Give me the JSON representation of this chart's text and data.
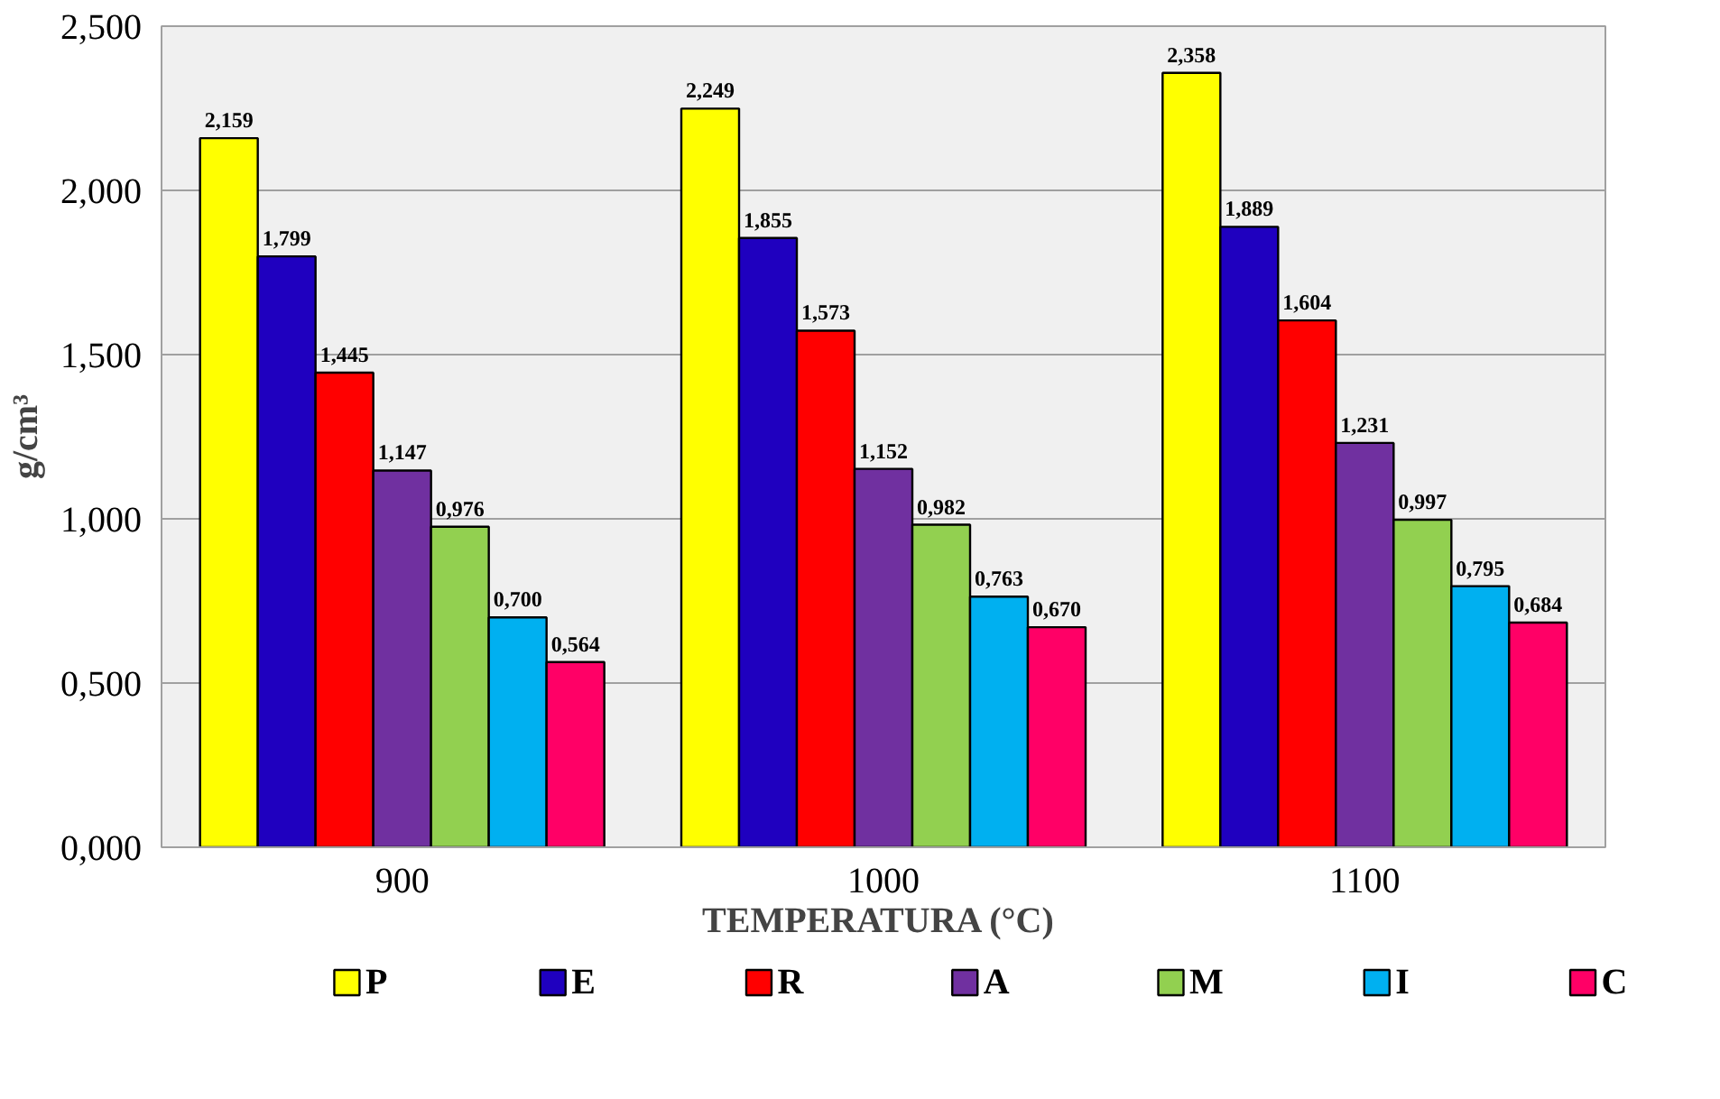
{
  "chart_data": {
    "type": "bar",
    "xlabel": "TEMPERATURA  (°C)",
    "ylabel": "g/cm³",
    "categories": [
      "900",
      "1000",
      "1100"
    ],
    "ylim": [
      0,
      2.5
    ],
    "yticks": [
      {
        "value": 0,
        "label": "0,000"
      },
      {
        "value": 0.5,
        "label": "0,500"
      },
      {
        "value": 1,
        "label": "1,000"
      },
      {
        "value": 1.5,
        "label": "1,500"
      },
      {
        "value": 2,
        "label": "2,000"
      },
      {
        "value": 2.5,
        "label": "2,500"
      }
    ],
    "grid": "y",
    "legend": "bottom",
    "series": [
      {
        "name": "P",
        "color": "#ffff00",
        "values": [
          2.159,
          2.249,
          2.358
        ],
        "value_labels": [
          "2,159",
          "2,249",
          "2,358"
        ]
      },
      {
        "name": "E",
        "color": "#1f00bf",
        "values": [
          1.799,
          1.855,
          1.889
        ],
        "value_labels": [
          "1,799",
          "1,855",
          "1,889"
        ]
      },
      {
        "name": "R",
        "color": "#ff0000",
        "values": [
          1.445,
          1.573,
          1.604
        ],
        "value_labels": [
          "1,445",
          "1,573",
          "1,604"
        ]
      },
      {
        "name": "A",
        "color": "#7030a0",
        "values": [
          1.147,
          1.152,
          1.231
        ],
        "value_labels": [
          "1,147",
          "1,152",
          "1,231"
        ]
      },
      {
        "name": "M",
        "color": "#92d050",
        "values": [
          0.976,
          0.982,
          0.997
        ],
        "value_labels": [
          "0,976",
          "0,982",
          "0,997"
        ]
      },
      {
        "name": "I",
        "color": "#00b0f0",
        "values": [
          0.7,
          0.763,
          0.795
        ],
        "value_labels": [
          "0,700",
          "0,763",
          "0,795"
        ]
      },
      {
        "name": "C",
        "color": "#ff0066",
        "values": [
          0.564,
          0.67,
          0.684
        ],
        "value_labels": [
          "0,564",
          "0,670",
          "0,684"
        ]
      }
    ]
  }
}
